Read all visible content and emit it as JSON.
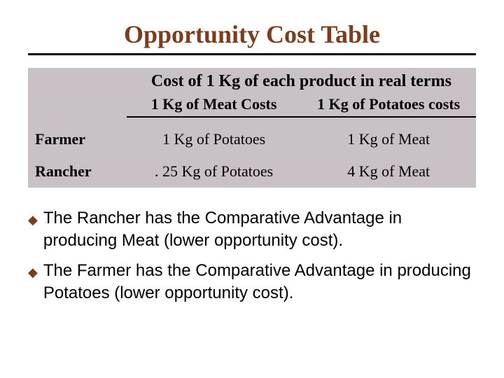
{
  "title": "Opportunity Cost Table",
  "table": {
    "header": "Cost of 1 Kg of each product in real terms",
    "sub": {
      "col1": "1 Kg of Meat Costs",
      "col2": "1 Kg of Potatoes costs"
    },
    "rows": [
      {
        "label": "Farmer",
        "meat_cost": "1 Kg of Potatoes",
        "potato_cost": "1 Kg of Meat"
      },
      {
        "label": "Rancher",
        "meat_cost": ". 25 Kg of Potatoes",
        "potato_cost": "4 Kg of Meat"
      }
    ],
    "style": {
      "background_color": "#c8c2c6",
      "underline_color": "#000000",
      "header_fontsize": 24,
      "sub_fontsize": 22,
      "cell_fontsize": 22,
      "font_family": "Times New Roman"
    }
  },
  "bullets": [
    "The Rancher has the Comparative Advantage in producing Meat (lower opportunity cost).",
    "The Farmer has the Comparative Advantage in producing Potatoes (lower opportunity cost)."
  ],
  "colors": {
    "title_color": "#7a3d1e",
    "bullet_color": "#7a3d1e",
    "rule_color": "#000000",
    "page_bg": "#ffffff"
  },
  "typography": {
    "title_fontsize": 36,
    "title_font_family": "Times New Roman",
    "bullet_fontsize": 24,
    "bullet_font_family": "Arial"
  }
}
